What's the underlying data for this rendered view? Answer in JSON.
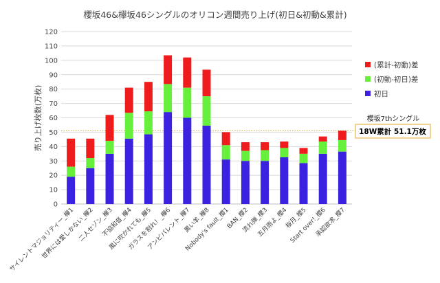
{
  "chart_data": {
    "type": "bar",
    "stacked": true,
    "title": "櫻坂46&欅坂46シングルのオリコン週間売り上げ(初日&初動&累計)",
    "ylabel": "売り上げ枚数(万枚)",
    "xlabel": "",
    "ylim": [
      0,
      120
    ],
    "yticks": [
      0,
      10,
      20,
      30,
      40,
      50,
      60,
      70,
      80,
      90,
      100,
      110,
      120
    ],
    "grid": true,
    "legend_position": "right",
    "categories": [
      "サイレントマジョリティー_欅1",
      "世界には愛しかない_欅2",
      "二人セゾン_欅3",
      "不協和音_欅4",
      "風に吹かれても_欅5",
      "ガラスを割れ！_欅6",
      "アンビバレント_欅7",
      "黒い羊_欅8",
      "Nobody's fault_櫻1",
      "BAN_櫻2",
      "流れ弾_櫻3",
      "五月雨よ_櫻4",
      "桜月_櫻5",
      "Start over!_櫻6",
      "承認欲求_櫻7"
    ],
    "series": [
      {
        "name": "初日",
        "color": "#3a22e0",
        "values": [
          19,
          25,
          35,
          45.5,
          48.5,
          64,
          60,
          54.5,
          31,
          30,
          30,
          32.5,
          28.5,
          35,
          36.5
        ]
      },
      {
        "name": "(初動-初日)差",
        "color": "#66f03c",
        "values": [
          7,
          7,
          9,
          18,
          16,
          19.5,
          21,
          20.5,
          10,
          7,
          7.5,
          6.5,
          6.5,
          8.5,
          8
        ]
      },
      {
        "name": "(累計-初動)差",
        "color": "#ee1c1c",
        "values": [
          19.5,
          13.5,
          18,
          17.5,
          20.5,
          20,
          21,
          18.5,
          9,
          6,
          5.5,
          4.5,
          4,
          3.5,
          6.5
        ]
      }
    ],
    "reference_line": {
      "value": 51.1,
      "color": "#c9a227",
      "style": "dotted"
    },
    "annotation": {
      "label": "櫻坂7thシングル",
      "value_text": "18W累計 51.1万枚",
      "border_color": "#e8b84a"
    }
  }
}
